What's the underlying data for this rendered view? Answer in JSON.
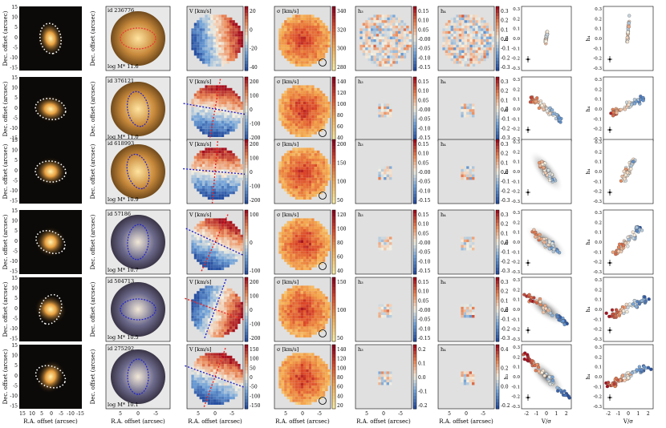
{
  "chart_data": {
    "type": "scatter",
    "column_labels": {
      "image_ylabel": "Dec. offset (arcsec)",
      "image_xlabel": "R.A. offset (arcsec)",
      "velocity": "V [km/s]",
      "dispersion": "σ [km/s]",
      "h3": "h₃",
      "h4": "h₄",
      "h3_vs_ylabel": "h₃",
      "h4_vs_ylabel": "h₄",
      "vsigma_xlabel": "V/σ"
    },
    "image_ticks": [
      15,
      10,
      5,
      0,
      -5,
      -10,
      -15
    ],
    "map_ticks": [
      5,
      0,
      -5
    ],
    "scatter_yticks": [
      "0.3",
      "0.2",
      "0.1",
      "0.0",
      "-0.1",
      "-0.2",
      "-0.3"
    ],
    "scatter_xticks": [
      "-2",
      "-1",
      "0",
      "1",
      "2"
    ],
    "galaxies": [
      {
        "id": "id 236776",
        "mass": "log M* 11.6",
        "v_ticks": [
          "20",
          "0",
          "-20",
          "-40"
        ],
        "v_range": [
          -50,
          35
        ],
        "s_ticks": [
          "340",
          "320",
          "300",
          "280"
        ],
        "s_range": [
          270,
          345
        ],
        "h3_ticks": [
          "0.15",
          "0.10",
          "0.05",
          "-0.00",
          "-0.05",
          "-0.10",
          "-0.15"
        ],
        "h4_ticks": [
          "0.3",
          "0.2",
          "0.1",
          "0.0",
          "-0.1",
          "-0.2",
          "-0.3"
        ],
        "h3_vsig": {
          "v": [
            -0.1,
            0.1
          ],
          "h": [
            -0.03,
            0.06
          ]
        },
        "h4_vsig": {
          "v": [
            -0.1,
            0.1
          ],
          "h": [
            -0.02,
            0.22
          ]
        },
        "pa_deg": 80
      },
      {
        "id": "id 376121",
        "mass": "log M* 11.0",
        "v_ticks": [
          "200",
          "100",
          "0",
          "-100",
          "-200"
        ],
        "v_range": [
          -230,
          230
        ],
        "s_ticks": [
          "140",
          "120",
          "100",
          "80",
          "60",
          "40"
        ],
        "s_range": [
          30,
          150
        ],
        "h3_ticks": [
          "0.15",
          "0.10",
          "0.05",
          "-0.00",
          "-0.05",
          "-0.10",
          "-0.15"
        ],
        "h4_ticks": [
          "0.3",
          "0.2",
          "0.1",
          "0.0",
          "-0.1",
          "-0.2",
          "-0.3"
        ],
        "h3_vsig": {
          "v": [
            -1.6,
            1.6
          ],
          "h": [
            0.12,
            -0.12
          ]
        },
        "h4_vsig": {
          "v": [
            -1.6,
            1.6
          ],
          "h": [
            -0.05,
            0.12
          ]
        },
        "pa_deg": 10
      },
      {
        "id": "id 618993",
        "mass": "log M* 10.9",
        "v_ticks": [
          "200",
          "100",
          "0",
          "-100",
          "-200"
        ],
        "v_range": [
          -230,
          230
        ],
        "s_ticks": [
          "200",
          "150",
          "100",
          "50"
        ],
        "s_range": [
          30,
          210
        ],
        "h3_ticks": [
          "0.15",
          "0.10",
          "0.05",
          "-0.00",
          "-0.05",
          "-0.10",
          "-0.15"
        ],
        "h4_ticks": [
          "0.3",
          "0.2",
          "0.1",
          "0.0",
          "-0.1",
          "-0.2",
          "-0.3"
        ],
        "h3_vsig": {
          "v": [
            -0.6,
            0.6
          ],
          "h": [
            0.08,
            -0.08
          ]
        },
        "h4_vsig": {
          "v": [
            -0.6,
            0.6
          ],
          "h": [
            -0.1,
            0.12
          ]
        },
        "pa_deg": 5
      },
      {
        "id": "id 57186",
        "mass": "log M* 10.7",
        "v_ticks": [
          "100",
          "0",
          "-100"
        ],
        "v_range": [
          -160,
          160
        ],
        "s_ticks": [
          "120",
          "100",
          "80",
          "60",
          "40"
        ],
        "s_range": [
          30,
          130
        ],
        "h3_ticks": [
          "0.15",
          "0.10",
          "0.05",
          "-0.00",
          "-0.05",
          "-0.10",
          "-0.15"
        ],
        "h4_ticks": [
          "0.3",
          "0.2",
          "0.1",
          "0.0",
          "-0.1",
          "-0.2",
          "-0.3"
        ],
        "h3_vsig": {
          "v": [
            -1.3,
            1.3
          ],
          "h": [
            0.1,
            -0.1
          ]
        },
        "h4_vsig": {
          "v": [
            -1.3,
            1.3
          ],
          "h": [
            -0.12,
            0.15
          ]
        },
        "pa_deg": 25
      },
      {
        "id": "id 504713",
        "mass": "log M* 10.5",
        "v_ticks": [
          "200",
          "100",
          "0",
          "-100",
          "-200"
        ],
        "v_range": [
          -230,
          230
        ],
        "s_ticks": [
          "150",
          "100",
          "50"
        ],
        "s_range": [
          30,
          170
        ],
        "h3_ticks": [
          "0.15",
          "0.10",
          "0.05",
          "-0.00",
          "-0.05",
          "-0.10",
          "-0.15"
        ],
        "h4_ticks": [
          "0.3",
          "0.2",
          "0.1",
          "0.0",
          "-0.1",
          "-0.2",
          "-0.3"
        ],
        "h3_vsig": {
          "v": [
            -2.0,
            2.0
          ],
          "h": [
            0.15,
            -0.15
          ]
        },
        "h4_vsig": {
          "v": [
            -2.0,
            2.0
          ],
          "h": [
            -0.08,
            0.12
          ]
        },
        "pa_deg": 110
      },
      {
        "id": "id 275292",
        "mass": "log M* 10.1",
        "v_ticks": [
          "150",
          "100",
          "50",
          "0",
          "-50",
          "-100",
          "-150"
        ],
        "v_range": [
          -170,
          170
        ],
        "s_ticks": [
          "140",
          "120",
          "100",
          "80",
          "60",
          "40",
          "20"
        ],
        "s_range": [
          15,
          150
        ],
        "h3_ticks": [
          "0.2",
          "0.1",
          "0.0",
          "-0.1",
          "-0.2"
        ],
        "h4_ticks": [
          "0.4",
          "0.2",
          "0.0",
          "-0.2"
        ],
        "h3_vsig": {
          "v": [
            -2.2,
            2.2
          ],
          "h": [
            0.22,
            -0.22
          ]
        },
        "h4_vsig": {
          "v": [
            -2.2,
            2.2
          ],
          "h": [
            -0.1,
            0.12
          ]
        },
        "pa_deg": 20
      }
    ]
  }
}
